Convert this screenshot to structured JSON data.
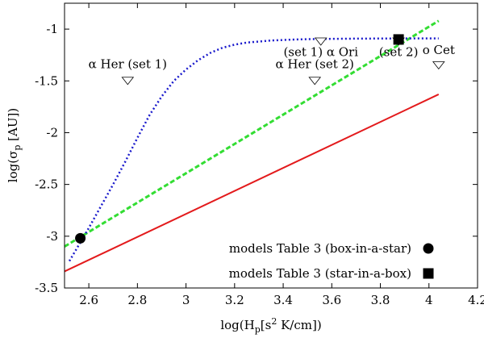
{
  "chart_data": {
    "type": "line",
    "title": "",
    "xlabel": "log(H",
    "xlabel_sub": "p",
    "xlabel_mid": "[s",
    "xlabel_sup": "2",
    "xlabel_end": " K/cm])",
    "ylabel": "log(σ",
    "ylabel_sub": "p",
    "ylabel_end": " [AU])",
    "xlim": [
      2.5,
      4.2
    ],
    "ylim": [
      -3.5,
      -0.75
    ],
    "xticks": [
      2.6,
      2.8,
      3,
      3.2,
      3.4,
      3.6,
      3.8,
      4,
      4.2
    ],
    "xtick_labels": [
      "2.6",
      "2.8",
      "3",
      "3.2",
      "3.4",
      "3.6",
      "3.8",
      "4",
      "4.2"
    ],
    "yticks": [
      -3.5,
      -3,
      -2.5,
      -2,
      -1.5,
      -1
    ],
    "ytick_labels": [
      "-3.5",
      "-3",
      "-2.5",
      "-2",
      "-1.5",
      "-1"
    ],
    "series": [
      {
        "name": "red line",
        "color": "#e31a1c",
        "style": "solid",
        "x": [
          2.5,
          4.04
        ],
        "y": [
          -3.34,
          -1.63
        ]
      },
      {
        "name": "green dashed line",
        "color": "#33dd33",
        "style": "dashed",
        "x": [
          2.5,
          4.04
        ],
        "y": [
          -3.1,
          -0.92
        ]
      },
      {
        "name": "blue dotted curve",
        "color": "#1a1acc",
        "style": "dotted",
        "x": [
          2.52,
          2.56,
          2.6,
          2.65,
          2.7,
          2.75,
          2.8,
          2.85,
          2.9,
          2.95,
          3.0,
          3.05,
          3.1,
          3.15,
          3.2,
          3.25,
          3.3,
          3.35,
          3.4,
          3.45,
          3.5,
          3.6,
          3.7,
          3.8,
          3.9,
          4.04
        ],
        "y": [
          -3.24,
          -3.08,
          -2.92,
          -2.71,
          -2.5,
          -2.28,
          -2.05,
          -1.83,
          -1.65,
          -1.5,
          -1.39,
          -1.3,
          -1.23,
          -1.18,
          -1.15,
          -1.13,
          -1.12,
          -1.11,
          -1.105,
          -1.1,
          -1.097,
          -1.094,
          -1.092,
          -1.091,
          -1.09,
          -1.09
        ]
      }
    ],
    "points": [
      {
        "name": "box-in-a-star",
        "marker": "circle",
        "x": 2.565,
        "y": -3.02
      },
      {
        "name": "star-in-a-box",
        "marker": "square",
        "x": 3.875,
        "y": -1.1
      }
    ],
    "annotations": [
      {
        "label": "α Her (set 1)",
        "marker_x": 2.76,
        "marker_y": -1.5
      },
      {
        "label": "α Her (set 2)",
        "marker_x": 3.53,
        "marker_y": -1.5
      },
      {
        "label": "(set 1) α Ori",
        "marker_x": 3.555,
        "marker_y": -1.12
      },
      {
        "label": "(set 2)",
        "marker_x": 3.875,
        "marker_y": -1.12
      },
      {
        "label": "o Cet",
        "marker_x": 4.04,
        "marker_y": -1.35
      }
    ],
    "legend": [
      {
        "label": "models Table 3 (box-in-a-star)",
        "marker": "circle"
      },
      {
        "label": "models Table 3 (star-in-a-box)",
        "marker": "square"
      }
    ],
    "legend_position": "bottom-right",
    "grid": false
  }
}
